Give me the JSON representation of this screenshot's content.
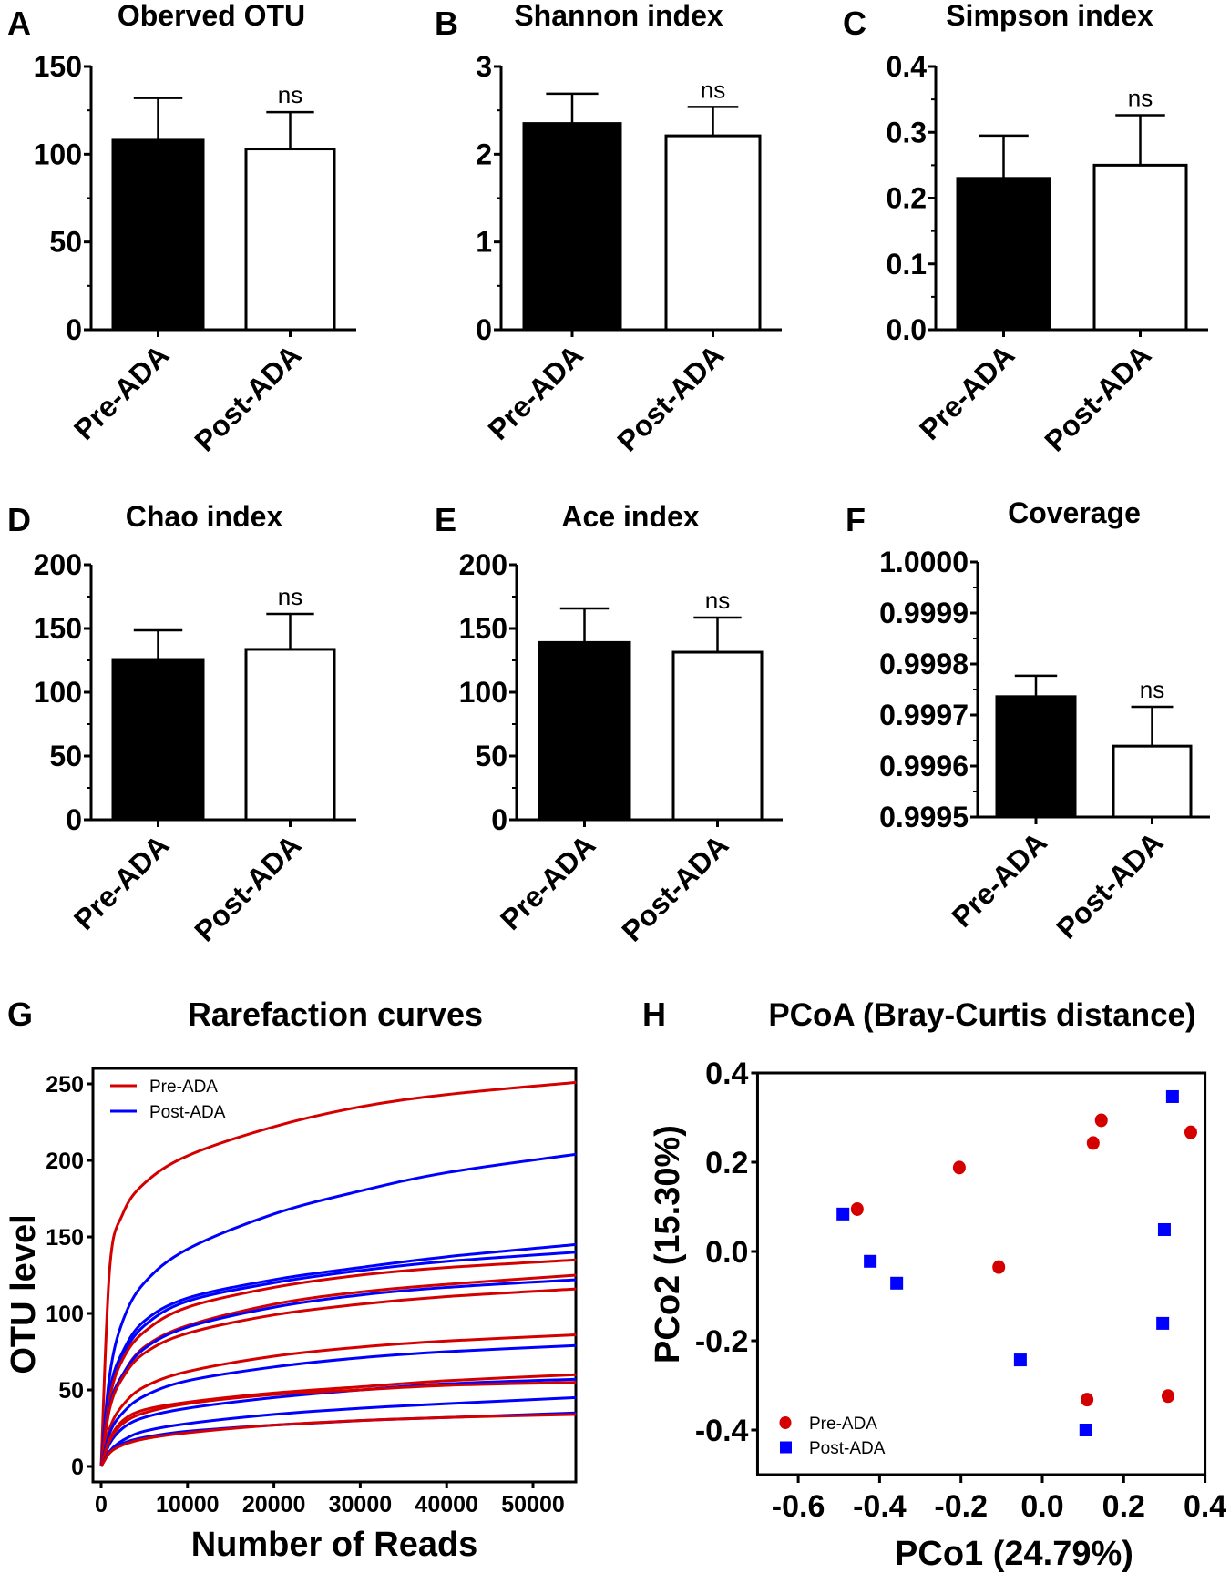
{
  "colors": {
    "pre": "#d40000",
    "post": "#0000ff",
    "bar_pre": "#000000",
    "bar_post": "#ffffff"
  },
  "chart_data": [
    {
      "panel": "A",
      "type": "bar",
      "title": "Oberved OTU",
      "categories": [
        "Pre-ADA",
        "Post-ADA"
      ],
      "values": [
        108,
        103
      ],
      "error_upper": [
        132,
        124
      ],
      "ylim": [
        0,
        150
      ],
      "yticks": [
        0,
        50,
        100,
        150
      ],
      "ytick_labels": [
        "0",
        "50",
        "100",
        "150"
      ],
      "annotation": "ns"
    },
    {
      "panel": "B",
      "type": "bar",
      "title": "Shannon index",
      "categories": [
        "Pre-ADA",
        "Post-ADA"
      ],
      "values": [
        2.35,
        2.21
      ],
      "error_upper": [
        2.69,
        2.54
      ],
      "ylim": [
        0,
        3
      ],
      "yticks": [
        0,
        1,
        2,
        3
      ],
      "ytick_labels": [
        "0",
        "1",
        "2",
        "3"
      ],
      "annotation": "ns"
    },
    {
      "panel": "C",
      "type": "bar",
      "title": "Simpson index",
      "categories": [
        "Pre-ADA",
        "Post-ADA"
      ],
      "values": [
        0.23,
        0.25
      ],
      "error_upper": [
        0.295,
        0.326
      ],
      "ylim": [
        0,
        0.4
      ],
      "yticks": [
        0,
        0.1,
        0.2,
        0.3,
        0.4
      ],
      "ytick_labels": [
        "0.0",
        "0.1",
        "0.2",
        "0.3",
        "0.4"
      ],
      "annotation": "ns"
    },
    {
      "panel": "D",
      "type": "bar",
      "title": "Chao index",
      "categories": [
        "Pre-ADA",
        "Post-ADA"
      ],
      "values": [
        125.7,
        133.6
      ],
      "error_upper": [
        148.6,
        161.4
      ],
      "ylim": [
        0,
        200
      ],
      "yticks": [
        0,
        50,
        100,
        150,
        200
      ],
      "ytick_labels": [
        "0",
        "50",
        "100",
        "150",
        "200"
      ],
      "annotation": "ns"
    },
    {
      "panel": "E",
      "type": "bar",
      "title": "Ace index",
      "categories": [
        "Pre-ADA",
        "Post-ADA"
      ],
      "values": [
        139,
        131.4
      ],
      "error_upper": [
        165.7,
        158.6
      ],
      "ylim": [
        0,
        200
      ],
      "yticks": [
        0,
        50,
        100,
        150,
        200
      ],
      "ytick_labels": [
        "0",
        "50",
        "100",
        "150",
        "200"
      ],
      "annotation": "ns"
    },
    {
      "panel": "F",
      "type": "bar",
      "title": "Coverage",
      "categories": [
        "Pre-ADA",
        "Post-ADA"
      ],
      "values": [
        0.999736,
        0.999639
      ],
      "error_upper": [
        0.999777,
        0.999716
      ],
      "ylim": [
        0.9995,
        1.0
      ],
      "yticks": [
        0.9995,
        0.9996,
        0.9997,
        0.9998,
        0.9999,
        1.0
      ],
      "ytick_labels": [
        "0.9995",
        "0.9996",
        "0.9997",
        "0.9998",
        "0.9999",
        "1.0000"
      ],
      "annotation": "ns"
    },
    {
      "panel": "G",
      "type": "line",
      "title": "Rarefaction curves",
      "xlabel": "Number of Reads",
      "ylabel": "OTU level",
      "xlim": [
        0,
        55000
      ],
      "ylim": [
        -10,
        260
      ],
      "xticks": [
        0,
        10000,
        20000,
        30000,
        40000,
        50000
      ],
      "xtick_labels": [
        "0",
        "10000",
        "20000",
        "30000",
        "40000",
        "50000"
      ],
      "yticks": [
        0,
        50,
        100,
        150,
        200,
        250
      ],
      "ytick_labels": [
        "0",
        "50",
        "100",
        "150",
        "200",
        "250"
      ],
      "legend": [
        {
          "name": "Pre-ADA",
          "group": "pre"
        },
        {
          "name": "Post-ADA",
          "group": "post"
        }
      ],
      "legend_position": "top-left",
      "x": [
        0,
        1000,
        2500,
        5000,
        10000,
        20000,
        30000,
        40000,
        55000
      ],
      "series": [
        {
          "group": "pre",
          "values": [
            0,
            130,
            165,
            185,
            203,
            222,
            235,
            243,
            251
          ]
        },
        {
          "group": "post",
          "values": [
            0,
            60,
            95,
            120,
            142,
            165,
            180,
            192,
            204
          ]
        },
        {
          "group": "post",
          "values": [
            0,
            50,
            75,
            95,
            110,
            122,
            130,
            137,
            145
          ]
        },
        {
          "group": "post",
          "values": [
            0,
            45,
            72,
            92,
            108,
            120,
            128,
            134,
            140
          ]
        },
        {
          "group": "pre",
          "values": [
            0,
            45,
            70,
            88,
            104,
            117,
            125,
            130,
            135
          ]
        },
        {
          "group": "pre",
          "values": [
            0,
            40,
            60,
            78,
            92,
            106,
            114,
            119,
            125
          ]
        },
        {
          "group": "post",
          "values": [
            0,
            40,
            60,
            77,
            91,
            104,
            112,
            117,
            122
          ]
        },
        {
          "group": "pre",
          "values": [
            0,
            38,
            58,
            74,
            87,
            99,
            106,
            111,
            116
          ]
        },
        {
          "group": "pre",
          "values": [
            0,
            25,
            40,
            52,
            62,
            72,
            78,
            82,
            86
          ]
        },
        {
          "group": "post",
          "values": [
            0,
            22,
            35,
            46,
            56,
            65,
            71,
            75,
            79
          ]
        },
        {
          "group": "pre",
          "values": [
            0,
            18,
            30,
            37,
            42,
            48,
            52,
            56,
            60
          ]
        },
        {
          "group": "post",
          "values": [
            0,
            15,
            25,
            32,
            38,
            45,
            50,
            54,
            57
          ]
        },
        {
          "group": "pre",
          "values": [
            0,
            17,
            28,
            35,
            41,
            47,
            50,
            53,
            55
          ]
        },
        {
          "group": "post",
          "values": [
            0,
            10,
            17,
            23,
            28,
            34,
            38,
            41,
            45
          ]
        },
        {
          "group": "post",
          "values": [
            0,
            9,
            15,
            19,
            23,
            27,
            30,
            32,
            35
          ]
        },
        {
          "group": "pre",
          "values": [
            0,
            9,
            14,
            18,
            22,
            27,
            30,
            32,
            34
          ]
        }
      ]
    },
    {
      "panel": "H",
      "type": "scatter",
      "title": "PCoA (Bray-Curtis distance)",
      "xlabel": "PCo1 (24.79%)",
      "ylabel": "PCo2 (15.30%)",
      "xlim": [
        -0.7,
        0.4
      ],
      "ylim": [
        -0.5,
        0.4
      ],
      "xticks": [
        -0.6,
        -0.4,
        -0.2,
        0.0,
        0.2,
        0.4
      ],
      "xtick_labels": [
        "-0.6",
        "-0.4",
        "-0.2",
        "0.0",
        "0.2",
        "0.4"
      ],
      "yticks": [
        -0.4,
        -0.2,
        0.0,
        0.2,
        0.4
      ],
      "ytick_labels": [
        "-0.4",
        "-0.2",
        "0.0",
        "0.2",
        "0.4"
      ],
      "legend": [
        {
          "name": "Pre-ADA",
          "group": "pre"
        },
        {
          "name": "Post-ADA",
          "group": "post"
        }
      ],
      "legend_position": "bottom-left",
      "series": [
        {
          "group": "pre",
          "marker": "circle",
          "points": [
            [
              -0.455,
              0.095
            ],
            [
              -0.204,
              0.188
            ],
            [
              -0.107,
              -0.035
            ],
            [
              0.125,
              0.243
            ],
            [
              0.145,
              0.294
            ],
            [
              0.365,
              0.267
            ],
            [
              0.11,
              -0.332
            ],
            [
              0.309,
              -0.324
            ]
          ]
        },
        {
          "group": "post",
          "marker": "square",
          "points": [
            [
              -0.49,
              0.084
            ],
            [
              -0.423,
              -0.022
            ],
            [
              -0.358,
              -0.071
            ],
            [
              0.32,
              0.347
            ],
            [
              0.3,
              0.049
            ],
            [
              0.296,
              -0.161
            ],
            [
              -0.054,
              -0.243
            ],
            [
              0.107,
              -0.4
            ]
          ]
        }
      ]
    }
  ]
}
